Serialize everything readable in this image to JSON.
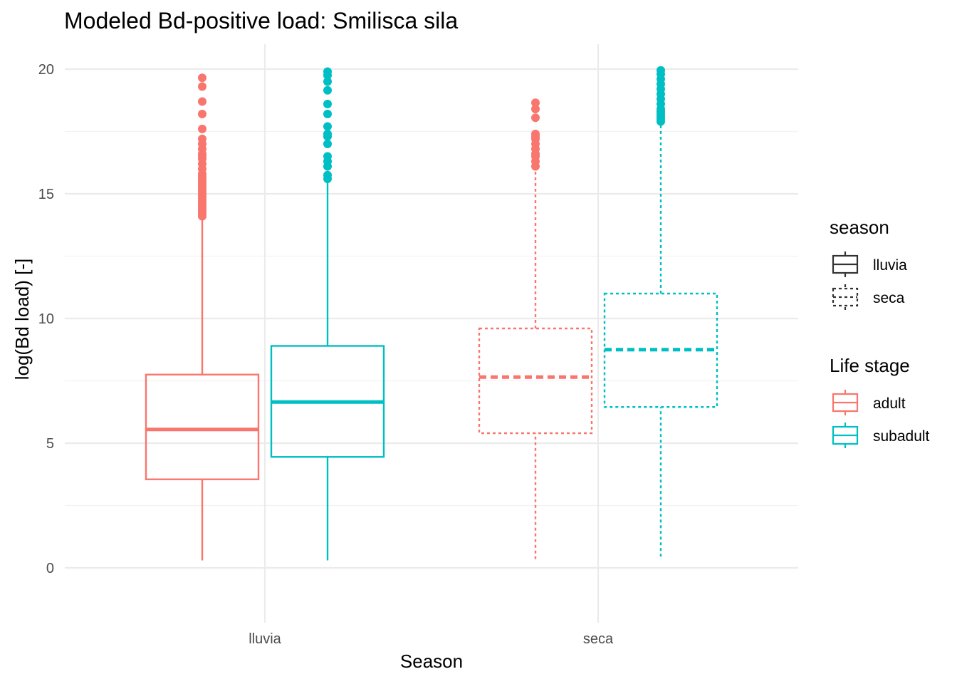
{
  "chart_data": {
    "type": "boxplot",
    "title": "Modeled Bd-positive load: Smilisca sila",
    "xlabel": "Season",
    "ylabel": "log(Bd load) [-]",
    "categories": [
      "lluvia",
      "seca"
    ],
    "ylim": [
      -2.2,
      21
    ],
    "yticks": [
      0,
      5,
      10,
      15,
      20
    ],
    "grid": true,
    "colors": {
      "adult": "#F8766D",
      "subadult": "#00BFC4"
    },
    "linetypes": {
      "lluvia": "solid",
      "seca": "dotted"
    },
    "boxes": [
      {
        "category": "lluvia",
        "life_stage": "adult",
        "season": "lluvia",
        "whisker_low": 0.3,
        "q1": 3.55,
        "median": 5.55,
        "q3": 7.75,
        "whisker_high": 14.0,
        "outliers": [
          14.1,
          14.2,
          14.3,
          14.4,
          14.5,
          14.6,
          14.7,
          14.8,
          14.9,
          15.0,
          15.1,
          15.2,
          15.3,
          15.4,
          15.5,
          15.6,
          15.7,
          15.8,
          16.0,
          16.2,
          16.4,
          16.5,
          16.6,
          16.8,
          17.0,
          17.2,
          17.6,
          18.2,
          18.7,
          19.3,
          19.65
        ]
      },
      {
        "category": "lluvia",
        "life_stage": "subadult",
        "season": "lluvia",
        "whisker_low": 0.3,
        "q1": 4.45,
        "median": 6.65,
        "q3": 8.9,
        "whisker_high": 15.5,
        "outliers": [
          15.6,
          15.75,
          16.1,
          16.3,
          16.5,
          17.0,
          17.3,
          17.4,
          17.7,
          18.2,
          18.6,
          19.15,
          19.5,
          19.75,
          19.9
        ]
      },
      {
        "category": "seca",
        "life_stage": "adult",
        "season": "seca",
        "whisker_low": 0.35,
        "q1": 5.4,
        "median": 7.65,
        "q3": 9.6,
        "whisker_high": 15.9,
        "outliers": [
          16.1,
          16.3,
          16.5,
          16.6,
          16.8,
          17.0,
          17.2,
          17.3,
          17.4,
          18.05,
          18.4,
          18.65
        ]
      },
      {
        "category": "seca",
        "life_stage": "subadult",
        "season": "seca",
        "whisker_low": 0.45,
        "q1": 6.45,
        "median": 8.75,
        "q3": 11.0,
        "whisker_high": 17.8,
        "outliers": [
          17.9,
          18.0,
          18.1,
          18.2,
          18.3,
          18.4,
          18.6,
          18.8,
          19.0,
          19.2,
          19.4,
          19.6,
          19.8,
          19.95
        ]
      }
    ],
    "legends": [
      {
        "title": "season",
        "entries": [
          {
            "label": "lluvia",
            "linetype": "solid"
          },
          {
            "label": "seca",
            "linetype": "dotted"
          }
        ]
      },
      {
        "title": "Life stage",
        "entries": [
          {
            "label": "adult",
            "color": "#F8766D"
          },
          {
            "label": "subadult",
            "color": "#00BFC4"
          }
        ]
      }
    ],
    "legend_position": "right"
  }
}
